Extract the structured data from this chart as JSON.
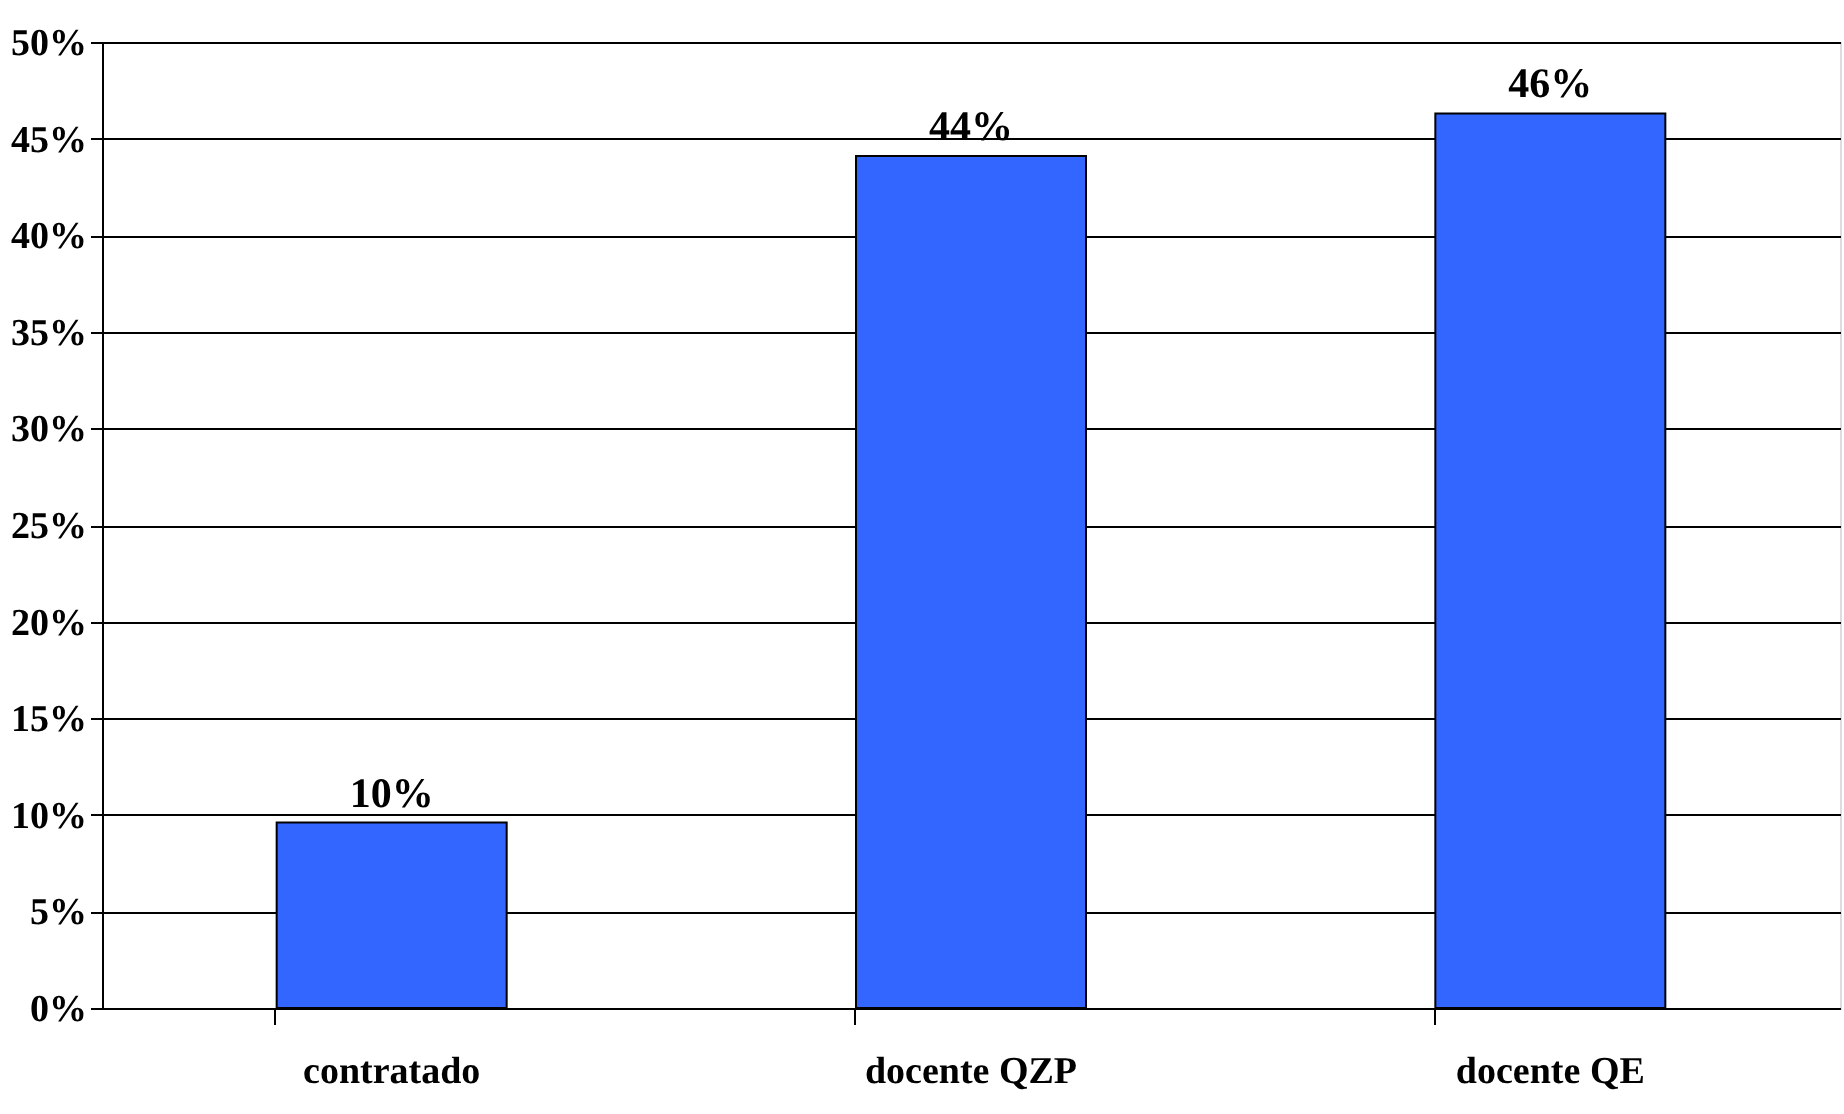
{
  "chart_data": {
    "type": "bar",
    "categories": [
      "contratado",
      "docente QZP",
      "docente QE"
    ],
    "values": [
      9.6,
      44.1,
      46.3
    ],
    "color": "#3366ff",
    "value_labels": [
      "10%",
      "44%",
      "46%"
    ],
    "ylim": [
      0,
      50
    ],
    "yticks": [
      {
        "value": 0,
        "label": "0%"
      },
      {
        "value": 5,
        "label": "5%"
      },
      {
        "value": 10,
        "label": "10%"
      },
      {
        "value": 15,
        "label": "15%"
      },
      {
        "value": 20,
        "label": "20%"
      },
      {
        "value": 25,
        "label": "25%"
      },
      {
        "value": 30,
        "label": "30%"
      },
      {
        "value": 35,
        "label": "35%"
      },
      {
        "value": 40,
        "label": "40%"
      },
      {
        "value": 45,
        "label": "45%"
      },
      {
        "value": 50,
        "label": "50%"
      }
    ],
    "grid": "y"
  }
}
